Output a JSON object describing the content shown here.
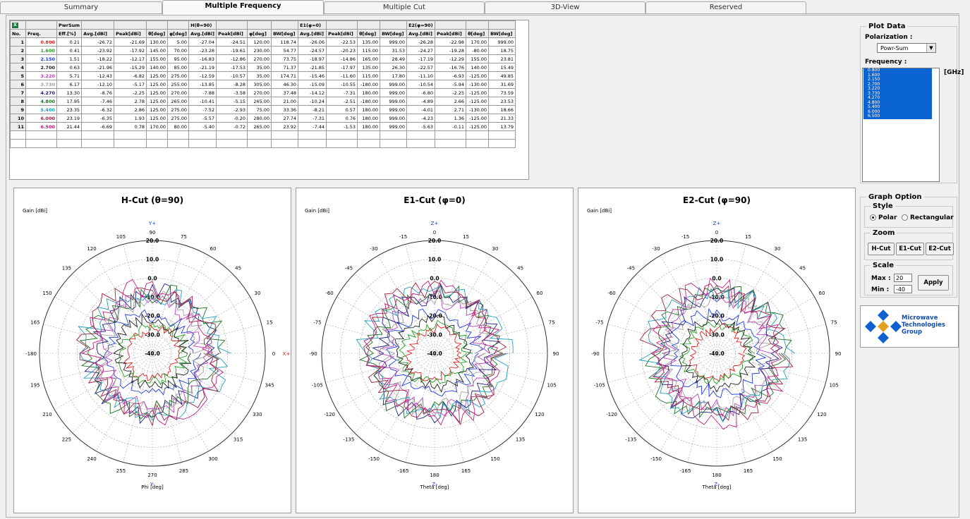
{
  "tabs": [
    {
      "label": "Summary",
      "active": false
    },
    {
      "label": "Multiple Frequency",
      "active": true
    },
    {
      "label": "Multiple Cut",
      "active": false
    },
    {
      "label": "3D-View",
      "active": false
    },
    {
      "label": "Reserved",
      "active": false
    }
  ],
  "table": {
    "group_headers": [
      "PwrSum",
      "H(θ=90)",
      "E1(φ=0)",
      "E2(φ=90)"
    ],
    "columns": [
      "No.",
      "Freq.",
      "Eff.[%]",
      "Avg.[dBi]",
      "Peak[dBi]",
      "θ[deg]",
      "φ[deg]",
      "Avg.[dBi]",
      "Peak[dBi]",
      "φ[deg]",
      "BW[deg]",
      "Avg.[dBi]",
      "Peak[dBi]",
      "θ[deg]",
      "BW[deg]",
      "Avg.[dBi]",
      "Peak[dBi]",
      "θ[deg]",
      "BW[deg]"
    ],
    "rows": [
      {
        "no": "1",
        "freq": "0.800",
        "color": "#e02020",
        "vals": [
          "0.21",
          "-26.72",
          "-21.69",
          "130.00",
          "5.00",
          "-27.04",
          "-24.51",
          "120.00",
          "118.74",
          "-26.06",
          "-22.53",
          "135.00",
          "999.00",
          "-26.28",
          "-22.98",
          "170.00",
          "999.00"
        ]
      },
      {
        "no": "2",
        "freq": "1.600",
        "color": "#20a020",
        "vals": [
          "0.41",
          "-23.92",
          "-17.92",
          "145.00",
          "70.00",
          "-23.28",
          "-19.61",
          "230.00",
          "54.77",
          "-24.57",
          "-20.23",
          "115.00",
          "31.53",
          "-24.27",
          "-19.28",
          "-80.00",
          "18.75"
        ]
      },
      {
        "no": "3",
        "freq": "2.150",
        "color": "#2040e0",
        "vals": [
          "1.51",
          "-18.22",
          "-12.17",
          "155.00",
          "95.00",
          "-16.83",
          "-12.86",
          "270.00",
          "73.75",
          "-18.97",
          "-14.86",
          "165.00",
          "28.49",
          "-17.19",
          "-12.29",
          "155.00",
          "23.81"
        ]
      },
      {
        "no": "4",
        "freq": "2.700",
        "color": "#202020",
        "vals": [
          "0.63",
          "-21.96",
          "-15.29",
          "140.00",
          "85.00",
          "-21.19",
          "-17.53",
          "35.00",
          "71.37",
          "-21.85",
          "-17.97",
          "135.00",
          "26.30",
          "-22.57",
          "-16.76",
          "140.00",
          "15.49"
        ]
      },
      {
        "no": "5",
        "freq": "3.220",
        "color": "#c040c0",
        "vals": [
          "5.71",
          "-12.43",
          "-6.82",
          "125.00",
          "275.00",
          "-12.59",
          "-10.57",
          "35.00",
          "174.71",
          "-15.46",
          "-11.60",
          "115.00",
          "17.80",
          "-11.10",
          "-6.93",
          "-125.00",
          "49.85"
        ]
      },
      {
        "no": "6",
        "freq": "3.730",
        "color": "#a0a0a0",
        "vals": [
          "6.17",
          "-12.10",
          "-5.17",
          "125.00",
          "255.00",
          "-13.85",
          "-8.28",
          "305.00",
          "46.30",
          "-15.09",
          "-10.55",
          "-180.00",
          "999.00",
          "-10.54",
          "-5.94",
          "-130.00",
          "31.69"
        ]
      },
      {
        "no": "7",
        "freq": "4.270",
        "color": "#202080",
        "vals": [
          "13.30",
          "-8.76",
          "-2.25",
          "125.00",
          "270.00",
          "-7.88",
          "-3.58",
          "270.00",
          "37.48",
          "-14.12",
          "-7.31",
          "180.00",
          "999.00",
          "-6.80",
          "-2.25",
          "-125.00",
          "73.59"
        ]
      },
      {
        "no": "8",
        "freq": "4.800",
        "color": "#207020",
        "vals": [
          "17.95",
          "-7.46",
          "2.78",
          "125.00",
          "265.00",
          "-10.41",
          "-5.15",
          "265.00",
          "21.00",
          "-10.24",
          "-2.51",
          "-180.00",
          "999.00",
          "-4.89",
          "2.66",
          "-125.00",
          "23.53"
        ]
      },
      {
        "no": "9",
        "freq": "5.400",
        "color": "#20a0c0",
        "vals": [
          "23.35",
          "-6.32",
          "2.86",
          "125.00",
          "275.00",
          "-7.52",
          "-2.93",
          "75.00",
          "33.36",
          "-8.21",
          "0.57",
          "180.00",
          "999.00",
          "-4.01",
          "2.71",
          "-130.00",
          "18.66"
        ]
      },
      {
        "no": "10",
        "freq": "6.000",
        "color": "#a02040",
        "vals": [
          "23.19",
          "-6.35",
          "1.93",
          "125.00",
          "275.00",
          "-5.57",
          "-0.20",
          "280.00",
          "27.74",
          "-7.31",
          "0.76",
          "180.00",
          "999.00",
          "-4.23",
          "1.36",
          "-125.00",
          "21.33"
        ]
      },
      {
        "no": "11",
        "freq": "6.500",
        "color": "#c02080",
        "vals": [
          "21.44",
          "-6.69",
          "0.78",
          "170.00",
          "80.00",
          "-5.40",
          "-0.72",
          "265.00",
          "23.92",
          "-7.44",
          "-1.53",
          "180.00",
          "999.00",
          "-5.63",
          "-0.11",
          "-125.00",
          "13.79"
        ]
      }
    ]
  },
  "plots": [
    {
      "title": "H-Cut (θ=90)",
      "gain_label": "Gain [dBi]",
      "axis_label": "Phi [deg]",
      "top_axis": "Y+",
      "right_axis": "X+",
      "bottom_axis": "Y-",
      "angles": [
        "90",
        "75",
        "60",
        "45",
        "30",
        "15",
        "0",
        "345",
        "330",
        "315",
        "300",
        "285",
        "270",
        "255",
        "240",
        "225",
        "210",
        "195",
        "-180",
        "165",
        "150",
        "135",
        "120",
        "105"
      ]
    },
    {
      "title": "E1-Cut (φ=0)",
      "gain_label": "Gain [dBi]",
      "axis_label": "Theta [deg]",
      "top_axis": "Z+",
      "right_axis": "",
      "bottom_axis": "Z-",
      "angles": [
        "0",
        "15",
        "30",
        "45",
        "60",
        "75",
        "90",
        "105",
        "120",
        "135",
        "150",
        "165",
        "180",
        "-165",
        "-150",
        "-135",
        "-120",
        "-105",
        "-90",
        "-75",
        "-60",
        "-45",
        "-30",
        "-15"
      ]
    },
    {
      "title": "E2-Cut (φ=90)",
      "gain_label": "Gain [dBi]",
      "axis_label": "Theta [deg]",
      "top_axis": "Z+",
      "right_axis": "",
      "bottom_axis": "Z-",
      "angles": [
        "0",
        "15",
        "30",
        "45",
        "60",
        "75",
        "90",
        "105",
        "120",
        "135",
        "150",
        "165",
        "180",
        "-165",
        "-150",
        "-135",
        "-120",
        "-105",
        "-90",
        "-75",
        "-60",
        "-45",
        "-30",
        "-15"
      ]
    }
  ],
  "radial_labels": [
    "20.0",
    "10.0",
    "0.0",
    "-10.0",
    "-20.0",
    "-30.0",
    "-40.0"
  ],
  "plot_data": {
    "legend": "Plot Data",
    "polarization_label": "Polarization :",
    "polarization_value": "Powr-Sum",
    "frequency_label": "Frequency :",
    "frequency_unit": "[GHz]",
    "frequencies": [
      "0.800",
      "1.600",
      "2.150",
      "2.700",
      "3.220",
      "3.730",
      "4.270",
      "4.800",
      "5.400",
      "6.000",
      "6.500"
    ]
  },
  "graph_option": {
    "legend": "Graph Option",
    "style_legend": "Style",
    "style_polar": "Polar",
    "style_rect": "Rectangular",
    "zoom_legend": "Zoom",
    "zoom_buttons": [
      "H-Cut",
      "E1-Cut",
      "E2-Cut"
    ],
    "scale_legend": "Scale",
    "max_label": "Max :",
    "max_value": "20",
    "min_label": "Min :",
    "min_value": "-40",
    "apply_label": "Apply"
  },
  "logo": {
    "line1": "Microwave",
    "line2": "Technologies",
    "line3": "Group"
  }
}
